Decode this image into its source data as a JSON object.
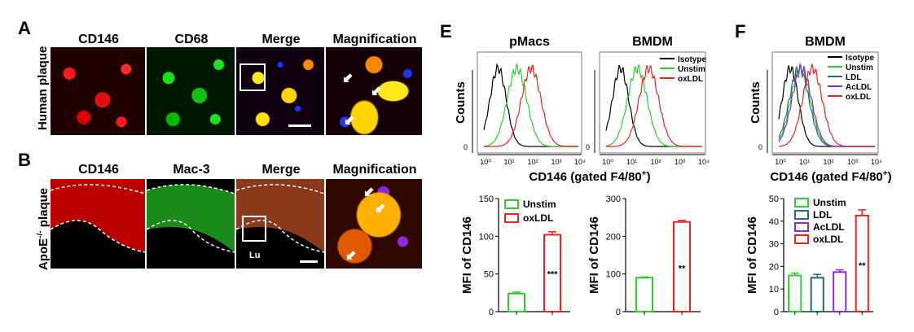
{
  "panels": {
    "A": {
      "letter": "A",
      "row_label": "Human plaque",
      "columns": [
        "CD146",
        "CD68",
        "Merge",
        "Magnification"
      ]
    },
    "B": {
      "letter": "B",
      "row_label": "ApoE",
      "row_label_sup": "-/-",
      "row_label_tail": " plaque",
      "columns": [
        "CD146",
        "Mac-3",
        "Merge",
        "Magnification"
      ],
      "lumen_label": "Lu"
    },
    "E": {
      "letter": "E"
    },
    "F": {
      "letter": "F"
    }
  },
  "colors": {
    "isotype": "#000000",
    "unstim": "#2ecc2e",
    "oxldl": "#ee2222",
    "ldl": "#2a6b6b",
    "acldl": "#8a2be2"
  },
  "chart_data": [
    {
      "id": "E-hist-pMacs",
      "type": "line",
      "title": "pMacs",
      "xlabel": "CD146 (gated F4/80+)",
      "ylabel": "Counts",
      "xscale": "log",
      "xticks": [
        "10⁰",
        "10¹",
        "10²",
        "10³",
        "10⁴"
      ],
      "xlim": [
        1,
        10000
      ],
      "series": [
        {
          "name": "Isotype",
          "peak": 4
        },
        {
          "name": "Unstim",
          "peak": 25
        },
        {
          "name": "oxLDL",
          "peak": 100
        }
      ]
    },
    {
      "id": "E-hist-BMDM",
      "type": "line",
      "title": "BMDM",
      "xlabel": "CD146 (gated F4/80+)",
      "ylabel": "Counts",
      "xscale": "log",
      "xticks": [
        "10⁰",
        "10¹",
        "10²",
        "10³",
        "10⁴"
      ],
      "xlim": [
        1,
        10000
      ],
      "legend": [
        "Isotype",
        "Unstim",
        "oxLDL"
      ],
      "series": [
        {
          "name": "Isotype",
          "peak": 4
        },
        {
          "name": "Unstim",
          "peak": 20
        },
        {
          "name": "oxLDL",
          "peak": 60
        }
      ]
    },
    {
      "id": "F-hist-BMDM",
      "type": "line",
      "title": "BMDM",
      "xlabel": "CD146 (gated F4/80+)",
      "ylabel": "Counts",
      "xscale": "log",
      "xticks": [
        "10⁰",
        "10¹",
        "10²",
        "10³",
        "10⁴"
      ],
      "xlim": [
        1,
        10000
      ],
      "legend": [
        "Isotype",
        "Unstim",
        "LDL",
        "AcLDL",
        "oxLDL"
      ],
      "series": [
        {
          "name": "Isotype",
          "peak": 3
        },
        {
          "name": "Unstim",
          "peak": 8
        },
        {
          "name": "LDL",
          "peak": 7
        },
        {
          "name": "AcLDL",
          "peak": 9
        },
        {
          "name": "oxLDL",
          "peak": 25
        }
      ]
    },
    {
      "id": "E-bar-pMacs",
      "type": "bar",
      "ylabel": "MFI of CD146",
      "ylim": [
        0,
        150
      ],
      "yticks": [
        0,
        50,
        100,
        150
      ],
      "legend": [
        "Unstim",
        "oxLDL"
      ],
      "categories": [
        "Unstim",
        "oxLDL"
      ],
      "values": [
        24,
        102
      ],
      "errors": [
        2,
        4
      ],
      "significance": [
        "",
        "***"
      ]
    },
    {
      "id": "E-bar-BMDM",
      "type": "bar",
      "ylabel": "MFI of CD146",
      "ylim": [
        0,
        300
      ],
      "yticks": [
        0,
        100,
        200,
        300
      ],
      "categories": [
        "Unstim",
        "oxLDL"
      ],
      "values": [
        90,
        238
      ],
      "errors": [
        2,
        4
      ],
      "significance": [
        "",
        "**"
      ]
    },
    {
      "id": "F-bar-BMDM",
      "type": "bar",
      "ylabel": "MFI of CD146",
      "ylim": [
        0,
        50
      ],
      "yticks": [
        0,
        10,
        20,
        30,
        40,
        50
      ],
      "legend": [
        "Unstim",
        "LDL",
        "AcLDL",
        "oxLDL"
      ],
      "categories": [
        "Unstim",
        "LDL",
        "AcLDL",
        "oxLDL"
      ],
      "values": [
        16,
        15,
        17.5,
        42.5
      ],
      "errors": [
        1,
        1.5,
        1,
        2.5
      ],
      "significance": [
        "",
        "",
        "",
        "**"
      ]
    }
  ]
}
